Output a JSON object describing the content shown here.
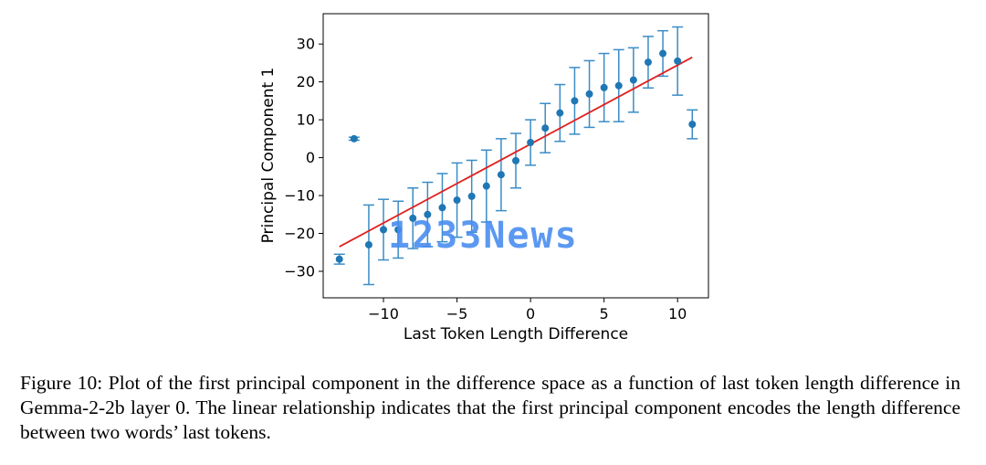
{
  "chart_data": {
    "type": "scatter",
    "xlabel": "Last Token Length Difference",
    "ylabel": "Principal Component 1",
    "xlim": [
      -14.1,
      12.1
    ],
    "ylim": [
      -37,
      38
    ],
    "xticks": [
      -10,
      -5,
      0,
      5,
      10
    ],
    "xtick_labels": [
      "−10",
      "−5",
      "0",
      "5",
      "10"
    ],
    "yticks": [
      -30,
      -20,
      -10,
      0,
      10,
      20,
      30
    ],
    "ytick_labels": [
      "−30",
      "−20",
      "−10",
      "0",
      "10",
      "20",
      "30"
    ],
    "grid": false,
    "points": [
      {
        "x": -13,
        "y": -26.8,
        "err": 1.3
      },
      {
        "x": -12,
        "y": 5,
        "err": 0.4
      },
      {
        "x": -11,
        "y": -23,
        "err": 10.5
      },
      {
        "x": -10,
        "y": -19,
        "err": 8
      },
      {
        "x": -9,
        "y": -19,
        "err": 7.5
      },
      {
        "x": -8,
        "y": -16,
        "err": 8
      },
      {
        "x": -7,
        "y": -15,
        "err": 8.5
      },
      {
        "x": -6,
        "y": -13.2,
        "err": 9
      },
      {
        "x": -5,
        "y": -11.2,
        "err": 9.8
      },
      {
        "x": -4,
        "y": -10.2,
        "err": 9.5
      },
      {
        "x": -3,
        "y": -7.5,
        "err": 9.5
      },
      {
        "x": -2,
        "y": -4.5,
        "err": 9.5
      },
      {
        "x": -1,
        "y": -0.8,
        "err": 7.2
      },
      {
        "x": 0,
        "y": 4,
        "err": 6
      },
      {
        "x": 1,
        "y": 7.8,
        "err": 6.5
      },
      {
        "x": 2,
        "y": 11.8,
        "err": 7.5
      },
      {
        "x": 3,
        "y": 15,
        "err": 8.8
      },
      {
        "x": 4,
        "y": 16.8,
        "err": 8.8
      },
      {
        "x": 5,
        "y": 18.5,
        "err": 9
      },
      {
        "x": 6,
        "y": 19,
        "err": 9.5
      },
      {
        "x": 7,
        "y": 20.5,
        "err": 8.5
      },
      {
        "x": 8,
        "y": 25.2,
        "err": 6.8
      },
      {
        "x": 9,
        "y": 27.5,
        "err": 6
      },
      {
        "x": 10,
        "y": 25.5,
        "err": 9
      },
      {
        "x": 11,
        "y": 8.8,
        "err": 3.8
      }
    ],
    "fit_line": {
      "x": [
        -13,
        11
      ],
      "y": [
        -23.5,
        26.5
      ],
      "color": "#e0211f"
    },
    "marker_color": "#1f77b4",
    "errorbar_color": "#3a8cc6"
  },
  "watermark": {
    "text": "1233News"
  },
  "caption": {
    "text": "Figure 10: Plot of the first principal component in the difference space as a function of last token length difference in Gemma-2-2b layer 0.  The linear relationship indicates that the first principal component encodes the length difference between two words’ last tokens."
  }
}
